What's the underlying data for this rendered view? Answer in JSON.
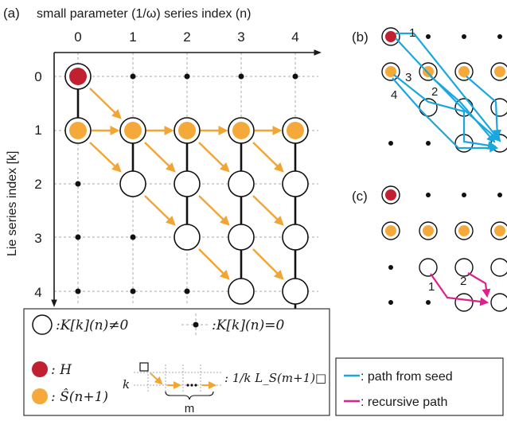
{
  "panel_a": {
    "label": "(a)",
    "top_title": "small parameter (1/ω) series index (n)",
    "side_title": "Lie series index [k]",
    "col_ticks": [
      "0",
      "1",
      "2",
      "3",
      "4"
    ],
    "row_ticks": [
      "0",
      "1",
      "2",
      "3",
      "4"
    ]
  },
  "panel_b": {
    "label": "(b)",
    "path_numbers": [
      "1",
      "2",
      "3",
      "4"
    ]
  },
  "panel_c": {
    "label": "(c)",
    "path_numbers": [
      "1",
      "2"
    ]
  },
  "legend": {
    "nonzero_text": ":K[k](n)≠0",
    "zero_text": ":K[k](n)=0",
    "red_text": ": H",
    "orange_text": ": Ŝ(n+1)",
    "k_label": "k",
    "m_label": "m",
    "op_text": ": 1/k L_S(m+1)□"
  },
  "path_legend": {
    "seed_text": ": path from seed",
    "recursive_text": ": recursive path"
  },
  "colors": {
    "red": "#c0202f",
    "orange": "#f5a93a",
    "arrow": "#f2a535",
    "cyan": "#1aa7e0",
    "magenta": "#e0208a"
  }
}
